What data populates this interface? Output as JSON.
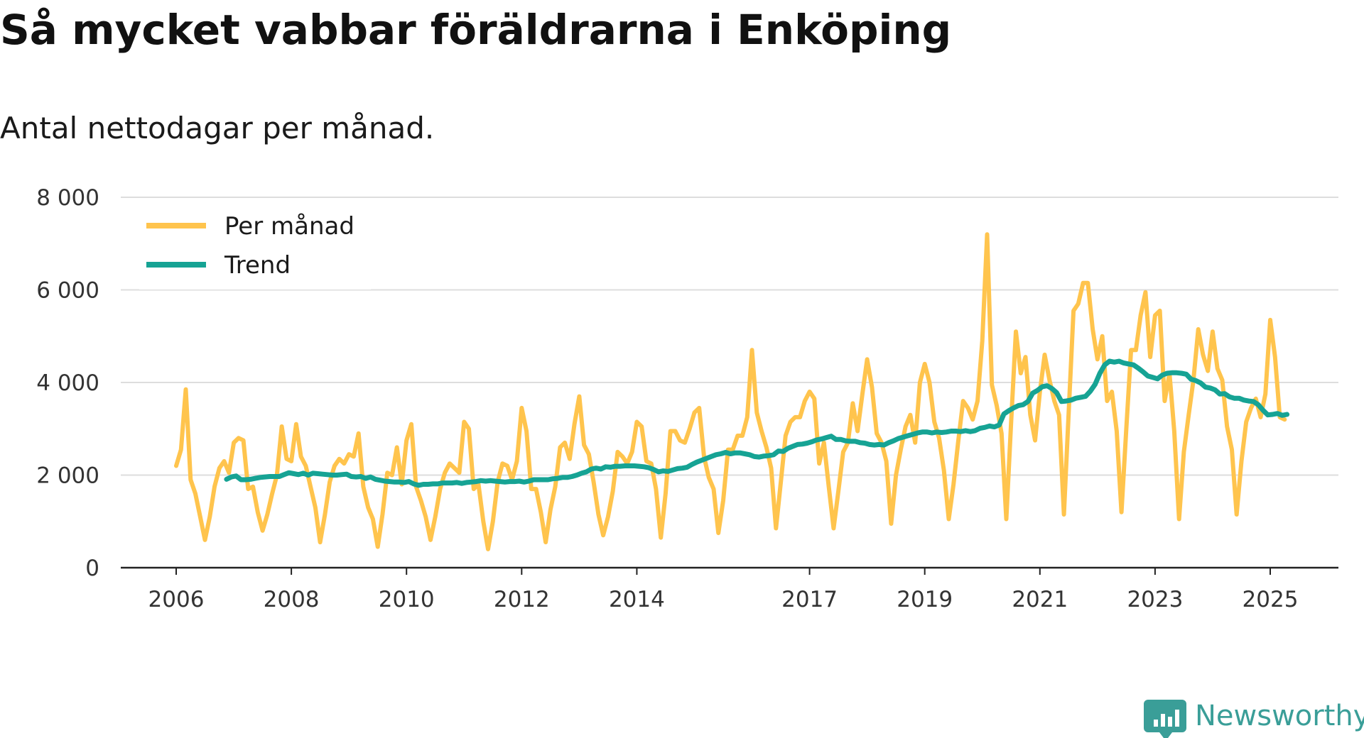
{
  "header": {
    "title": "Så mycket vabbar föräldrarna i Enköping",
    "subtitle": "Antal nettodagar per månad."
  },
  "brand": {
    "name": "Newsworthy",
    "icon": "newsworthy-logo-icon",
    "color": "#3a9e98"
  },
  "chart_data": {
    "type": "line",
    "title": "Så mycket vabbar föräldrarna i Enköping",
    "subtitle": "Antal nettodagar per månad.",
    "xlabel": "",
    "ylabel": "",
    "xlim": [
      2006,
      2025.6
    ],
    "ylim": [
      0,
      8000
    ],
    "yticks": [
      0,
      2000,
      4000,
      6000,
      8000
    ],
    "ytick_labels": [
      "0",
      "2 000",
      "4 000",
      "6 000",
      "8 000"
    ],
    "xticks": [
      2006,
      2008,
      2010,
      2012,
      2014,
      2017,
      2019,
      2021,
      2023,
      2025
    ],
    "xtick_labels": [
      "2006",
      "2008",
      "2010",
      "2012",
      "2014",
      "2017",
      "2019",
      "2021",
      "2023",
      "2025"
    ],
    "grid": true,
    "legend_position": "top-left",
    "x_start_monthly": 2006.0,
    "x_start_trend": 2006.875,
    "x_step": 0.0833333,
    "series": [
      {
        "name": "Per månad",
        "color": "#ffc44d",
        "values": [
          2200,
          2550,
          3850,
          1900,
          1600,
          1100,
          600,
          1100,
          1750,
          2150,
          2300,
          2050,
          2700,
          2800,
          2750,
          1700,
          1750,
          1200,
          800,
          1150,
          1600,
          2000,
          3050,
          2350,
          2300,
          3100,
          2400,
          2200,
          1750,
          1300,
          550,
          1150,
          1850,
          2200,
          2350,
          2250,
          2450,
          2400,
          2900,
          1750,
          1300,
          1050,
          450,
          1150,
          2050,
          2000,
          2600,
          1800,
          2750,
          3100,
          1750,
          1450,
          1100,
          600,
          1100,
          1700,
          2050,
          2250,
          2150,
          2050,
          3150,
          3000,
          1700,
          1800,
          1000,
          400,
          1000,
          1850,
          2250,
          2200,
          1900,
          2300,
          3450,
          2950,
          1700,
          1700,
          1200,
          550,
          1250,
          1750,
          2600,
          2700,
          2350,
          3100,
          3700,
          2650,
          2450,
          1850,
          1150,
          700,
          1100,
          1650,
          2500,
          2400,
          2250,
          2500,
          3150,
          3050,
          2300,
          2250,
          1700,
          650,
          1600,
          2950,
          2950,
          2750,
          2700,
          3000,
          3350,
          3450,
          2400,
          1950,
          1700,
          750,
          1450,
          2550,
          2550,
          2850,
          2850,
          3250,
          4700,
          3350,
          2950,
          2600,
          2150,
          850,
          1850,
          2850,
          3150,
          3250,
          3250,
          3600,
          3800,
          3650,
          2250,
          2700,
          1750,
          850,
          1650,
          2500,
          2700,
          3550,
          2950,
          3750,
          4500,
          3900,
          2900,
          2700,
          2300,
          950,
          2000,
          2550,
          3050,
          3300,
          2700,
          4000,
          4400,
          4000,
          3150,
          2800,
          2100,
          1050,
          1800,
          2750,
          3600,
          3450,
          3200,
          3600,
          4900,
          7200,
          3950,
          3500,
          2900,
          1050,
          3150,
          5100,
          4200,
          4550,
          3300,
          2750,
          3800,
          4600,
          4050,
          3600,
          3300,
          1150,
          3350,
          5550,
          5700,
          6150,
          6150,
          5150,
          4500,
          5000,
          3600,
          3800,
          2950,
          1200,
          3000,
          4700,
          4700,
          5450,
          5950,
          4550,
          5450,
          5550,
          3600,
          4200,
          2950,
          1050,
          2500,
          3300,
          4050,
          5150,
          4600,
          4250,
          5100,
          4300,
          4050,
          3050,
          2550,
          1150,
          2300,
          3150,
          3450,
          3650,
          3250,
          3750,
          5350,
          4550,
          3250,
          3200
        ]
      },
      {
        "name": "Trend",
        "color": "#16a394",
        "values": [
          1910,
          1960,
          1980,
          1900,
          1900,
          1910,
          1930,
          1950,
          1960,
          1970,
          1970,
          1970,
          2010,
          2050,
          2030,
          2010,
          2040,
          2000,
          2040,
          2030,
          2020,
          2010,
          2000,
          2000,
          2010,
          2020,
          1970,
          1960,
          1970,
          1930,
          1960,
          1910,
          1890,
          1870,
          1860,
          1850,
          1850,
          1840,
          1860,
          1810,
          1780,
          1800,
          1800,
          1810,
          1810,
          1830,
          1830,
          1830,
          1840,
          1820,
          1840,
          1850,
          1860,
          1880,
          1870,
          1880,
          1870,
          1860,
          1850,
          1860,
          1860,
          1870,
          1850,
          1870,
          1900,
          1900,
          1900,
          1900,
          1920,
          1930,
          1950,
          1950,
          1970,
          2000,
          2040,
          2070,
          2130,
          2150,
          2130,
          2180,
          2170,
          2190,
          2190,
          2200,
          2200,
          2200,
          2190,
          2180,
          2160,
          2120,
          2070,
          2090,
          2080,
          2110,
          2140,
          2150,
          2170,
          2230,
          2280,
          2320,
          2360,
          2400,
          2440,
          2460,
          2490,
          2460,
          2480,
          2480,
          2460,
          2440,
          2400,
          2390,
          2410,
          2420,
          2440,
          2520,
          2510,
          2580,
          2620,
          2660,
          2670,
          2690,
          2720,
          2760,
          2780,
          2810,
          2840,
          2770,
          2770,
          2740,
          2730,
          2730,
          2700,
          2690,
          2660,
          2650,
          2660,
          2650,
          2700,
          2740,
          2790,
          2820,
          2850,
          2880,
          2910,
          2930,
          2930,
          2910,
          2930,
          2920,
          2930,
          2950,
          2950,
          2940,
          2960,
          2940,
          2960,
          3010,
          3030,
          3060,
          3040,
          3080,
          3320,
          3390,
          3450,
          3500,
          3520,
          3590,
          3770,
          3830,
          3910,
          3930,
          3870,
          3780,
          3590,
          3600,
          3620,
          3660,
          3680,
          3700,
          3810,
          3960,
          4200,
          4380,
          4460,
          4440,
          4460,
          4420,
          4400,
          4380,
          4310,
          4230,
          4140,
          4110,
          4080,
          4160,
          4200,
          4210,
          4210,
          4200,
          4180,
          4070,
          4040,
          3990,
          3900,
          3880,
          3840,
          3750,
          3760,
          3690,
          3660,
          3660,
          3620,
          3600,
          3590,
          3520,
          3400,
          3300,
          3310,
          3330,
          3290,
          3310
        ]
      }
    ]
  }
}
